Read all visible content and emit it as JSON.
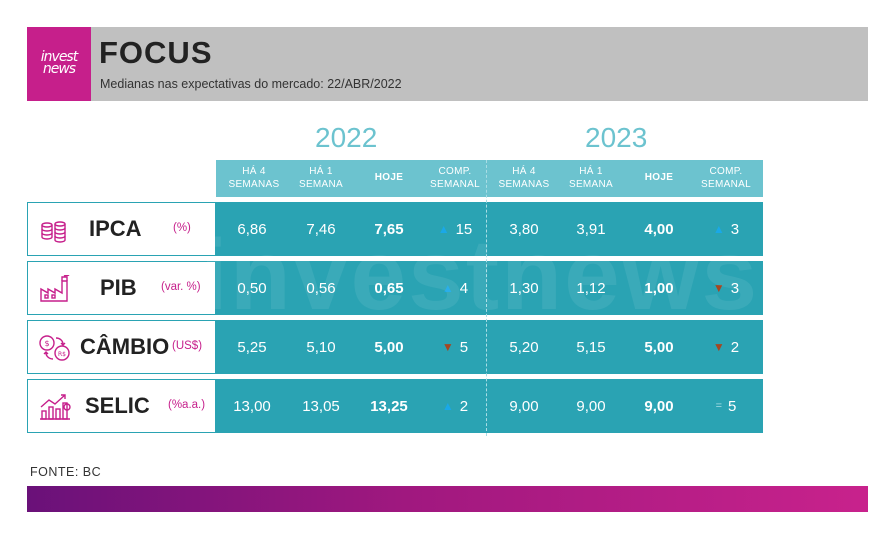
{
  "brand": {
    "logo_line1": "invest",
    "logo_line2": "news",
    "watermark": "investnews"
  },
  "header": {
    "title": "FOCUS",
    "subtitle": "Medianas nas expectativas do mercado: 22/ABR/2022"
  },
  "years": [
    "2022",
    "2023"
  ],
  "columns": [
    "HÁ 4 SEMANAS",
    "HÁ 1 SEMANA",
    "HOJE",
    "COMP. SEMANAL"
  ],
  "rows": [
    {
      "name": "IPCA",
      "unit": "(%)",
      "icon": "coins-icon",
      "y2022": {
        "w4": "6,86",
        "w1": "7,46",
        "today": "7,65",
        "trend": "up",
        "count": "15"
      },
      "y2023": {
        "w4": "3,80",
        "w1": "3,91",
        "today": "4,00",
        "trend": "up",
        "count": "3"
      }
    },
    {
      "name": "PIB",
      "unit": "(var. %)",
      "icon": "factory-icon",
      "y2022": {
        "w4": "0,50",
        "w1": "0,56",
        "today": "0,65",
        "trend": "up",
        "count": "4"
      },
      "y2023": {
        "w4": "1,30",
        "w1": "1,12",
        "today": "1,00",
        "trend": "down",
        "count": "3"
      }
    },
    {
      "name": "CÂMBIO",
      "unit": "(US$)",
      "icon": "currency-exchange-icon",
      "y2022": {
        "w4": "5,25",
        "w1": "5,10",
        "today": "5,00",
        "trend": "down",
        "count": "5"
      },
      "y2023": {
        "w4": "5,20",
        "w1": "5,15",
        "today": "5,00",
        "trend": "down",
        "count": "2"
      }
    },
    {
      "name": "SELIC",
      "unit": "(%a.a.)",
      "icon": "rising-chart-icon",
      "y2022": {
        "w4": "13,00",
        "w1": "13,05",
        "today": "13,25",
        "trend": "up",
        "count": "2"
      },
      "y2023": {
        "w4": "9,00",
        "w1": "9,00",
        "today": "9,00",
        "trend": "equal",
        "count": "5"
      }
    }
  ],
  "footer": {
    "source": "FONTE: BC"
  },
  "colors": {
    "brand": "#c61f8b",
    "table": "#2aa3b3",
    "header_row": "#6cc3cf",
    "up": "#1aa8e8",
    "down": "#a44721",
    "header_bg": "#c0c0c0"
  }
}
